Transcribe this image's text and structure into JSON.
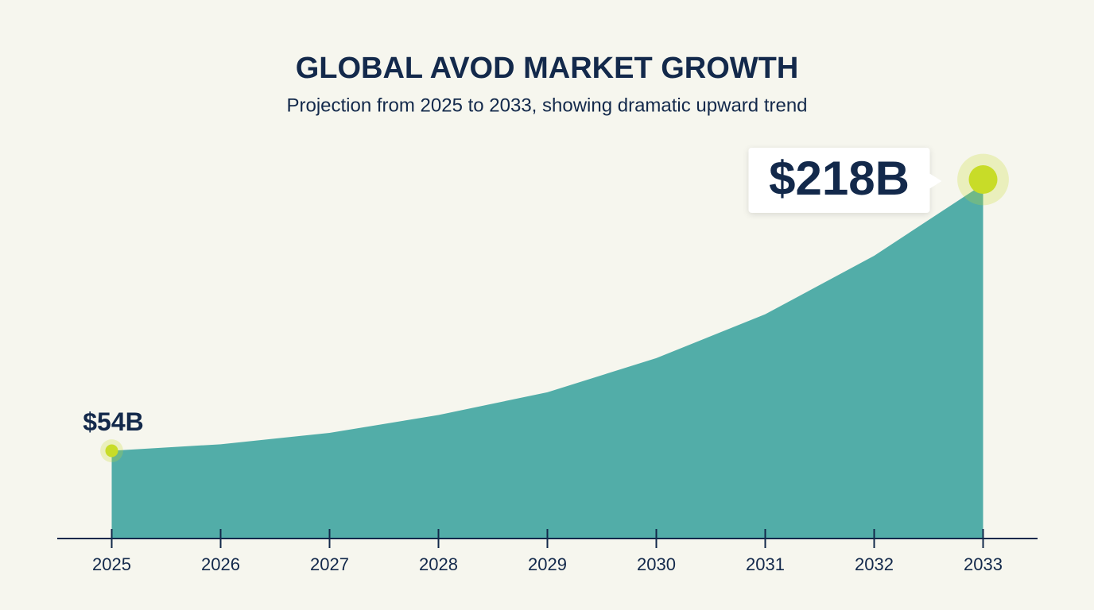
{
  "chart_data": {
    "type": "area",
    "title": "GLOBAL AVOD MARKET GROWTH",
    "subtitle": "Projection from 2025 to 2033, showing dramatic upward trend",
    "x": [
      2025,
      2026,
      2027,
      2028,
      2029,
      2030,
      2031,
      2032,
      2033
    ],
    "values": [
      54,
      58,
      65,
      76,
      90,
      111,
      138,
      174,
      218
    ],
    "value_labels": [
      "$54B",
      null,
      null,
      null,
      null,
      null,
      null,
      null,
      "$218B"
    ],
    "color": "#52ada8",
    "marker_color": "#c8dc28",
    "xlim": [
      2024.5,
      2033.5
    ],
    "xticks": [
      2025,
      2026,
      2027,
      2028,
      2029,
      2030,
      2031,
      2032,
      2033
    ],
    "ylim": [
      0,
      250
    ]
  }
}
